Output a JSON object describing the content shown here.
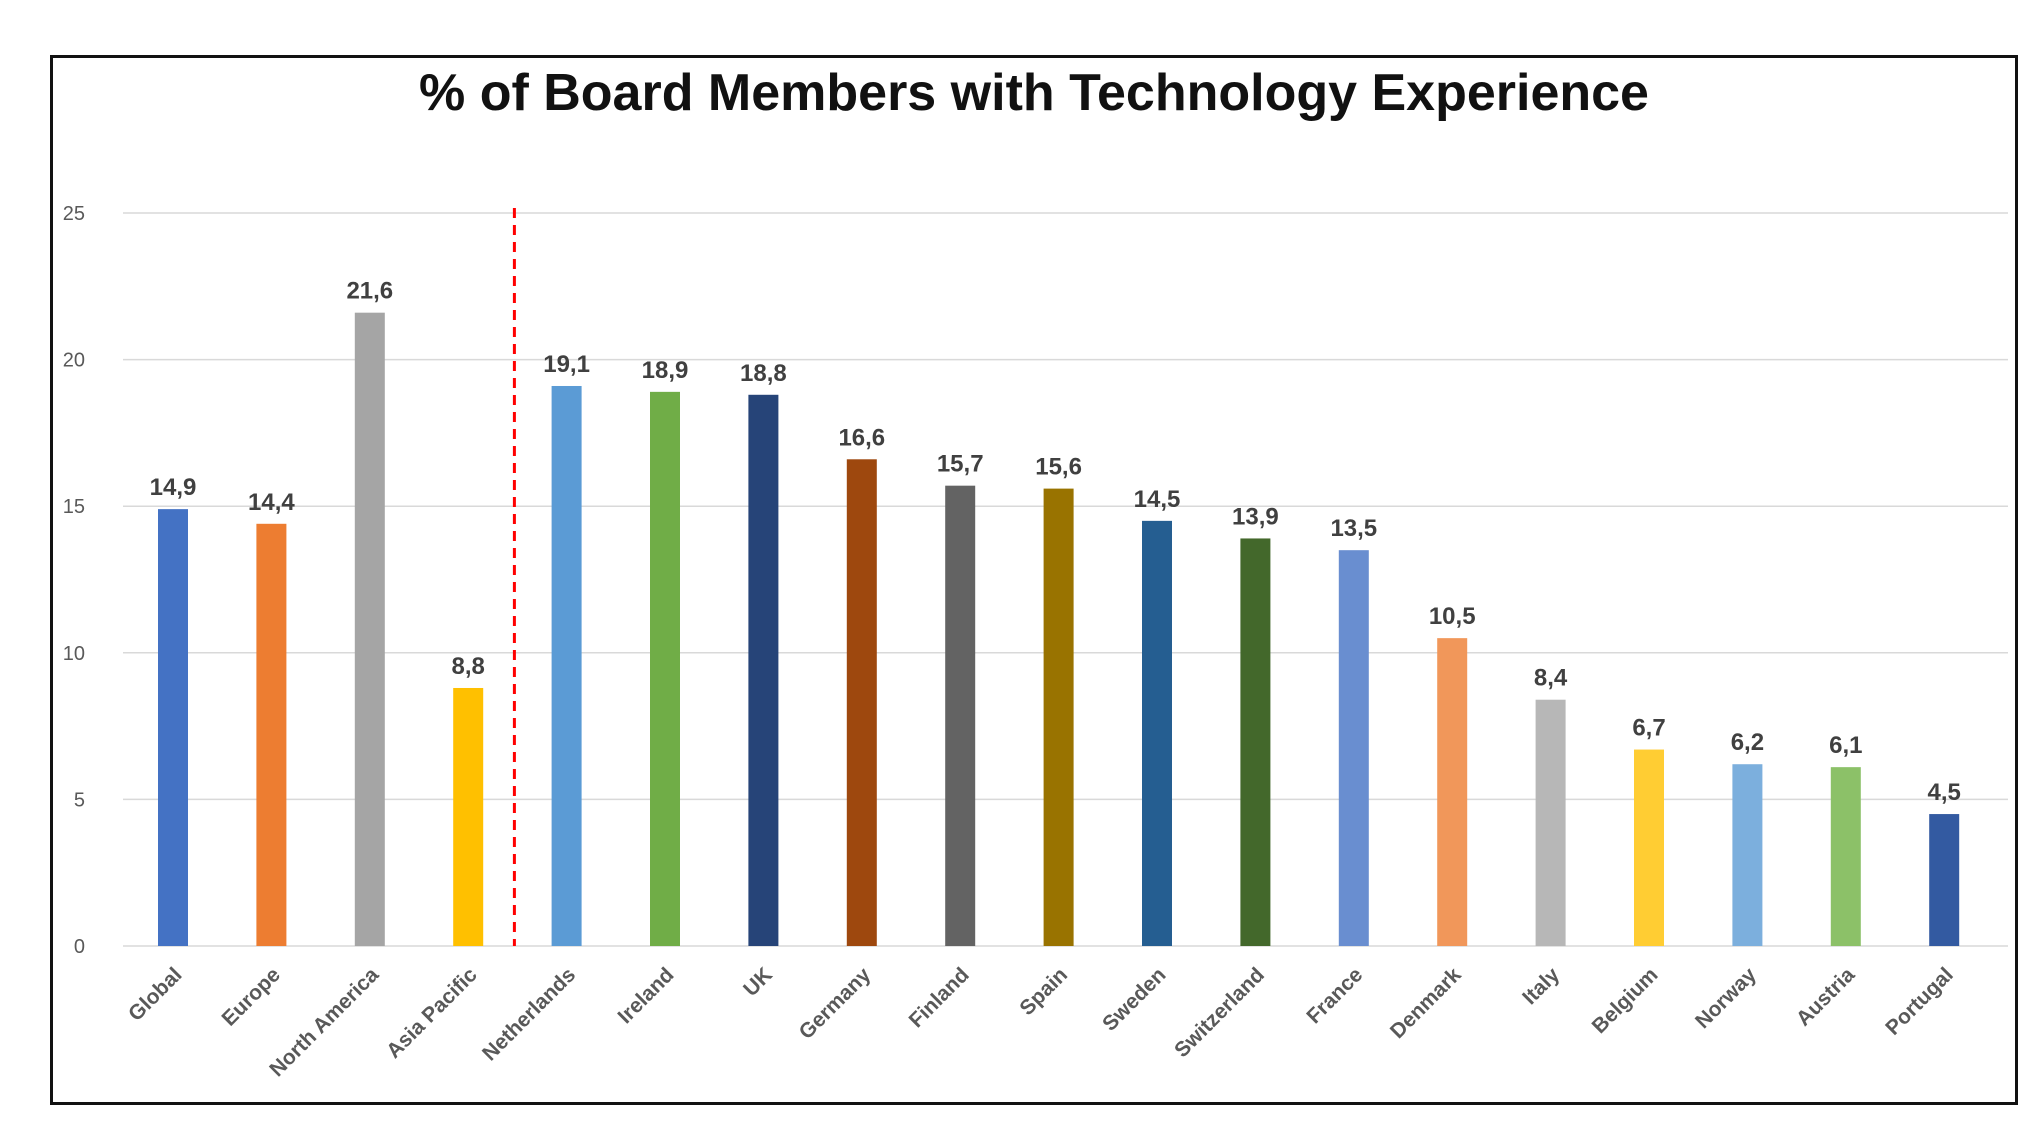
{
  "chart_data": {
    "type": "bar",
    "title": "% of Board Members with Technology Experience",
    "xlabel": "",
    "ylabel": "",
    "ylim": [
      0,
      25
    ],
    "yticks": [
      0,
      5,
      10,
      15,
      20,
      25
    ],
    "grid": true,
    "legend": "none",
    "categories": [
      "Global",
      "Europe",
      "North America",
      "Asia Pacific",
      "Netherlands",
      "Ireland",
      "UK",
      "Germany",
      "Finland",
      "Spain",
      "Sweden",
      "Switzerland",
      "France",
      "Denmark",
      "Italy",
      "Belgium",
      "Norway",
      "Austria",
      "Portugal"
    ],
    "values": [
      14.9,
      14.4,
      21.6,
      8.8,
      19.1,
      18.9,
      18.8,
      16.6,
      15.7,
      15.6,
      14.5,
      13.9,
      13.5,
      10.5,
      8.4,
      6.7,
      6.2,
      6.1,
      4.5
    ],
    "data_labels": [
      "14,9",
      "14,4",
      "21,6",
      "8,8",
      "19,1",
      "18,9",
      "18,8",
      "16,6",
      "15,7",
      "15,6",
      "14,5",
      "13,9",
      "13,5",
      "10,5",
      "8,4",
      "6,7",
      "6,2",
      "6,1",
      "4,5"
    ],
    "colors": [
      "#4472C4",
      "#ED7D31",
      "#A5A5A5",
      "#FFC000",
      "#5B9BD5",
      "#70AD47",
      "#264478",
      "#9E480E",
      "#636363",
      "#997300",
      "#255E91",
      "#43682B",
      "#698ED0",
      "#F1975A",
      "#B7B7B7",
      "#FFCD33",
      "#7CAFDD",
      "#8CC168",
      "#335AA1"
    ],
    "separator": {
      "after_index": 3,
      "color": "#FF0000",
      "style": "dashed"
    }
  }
}
